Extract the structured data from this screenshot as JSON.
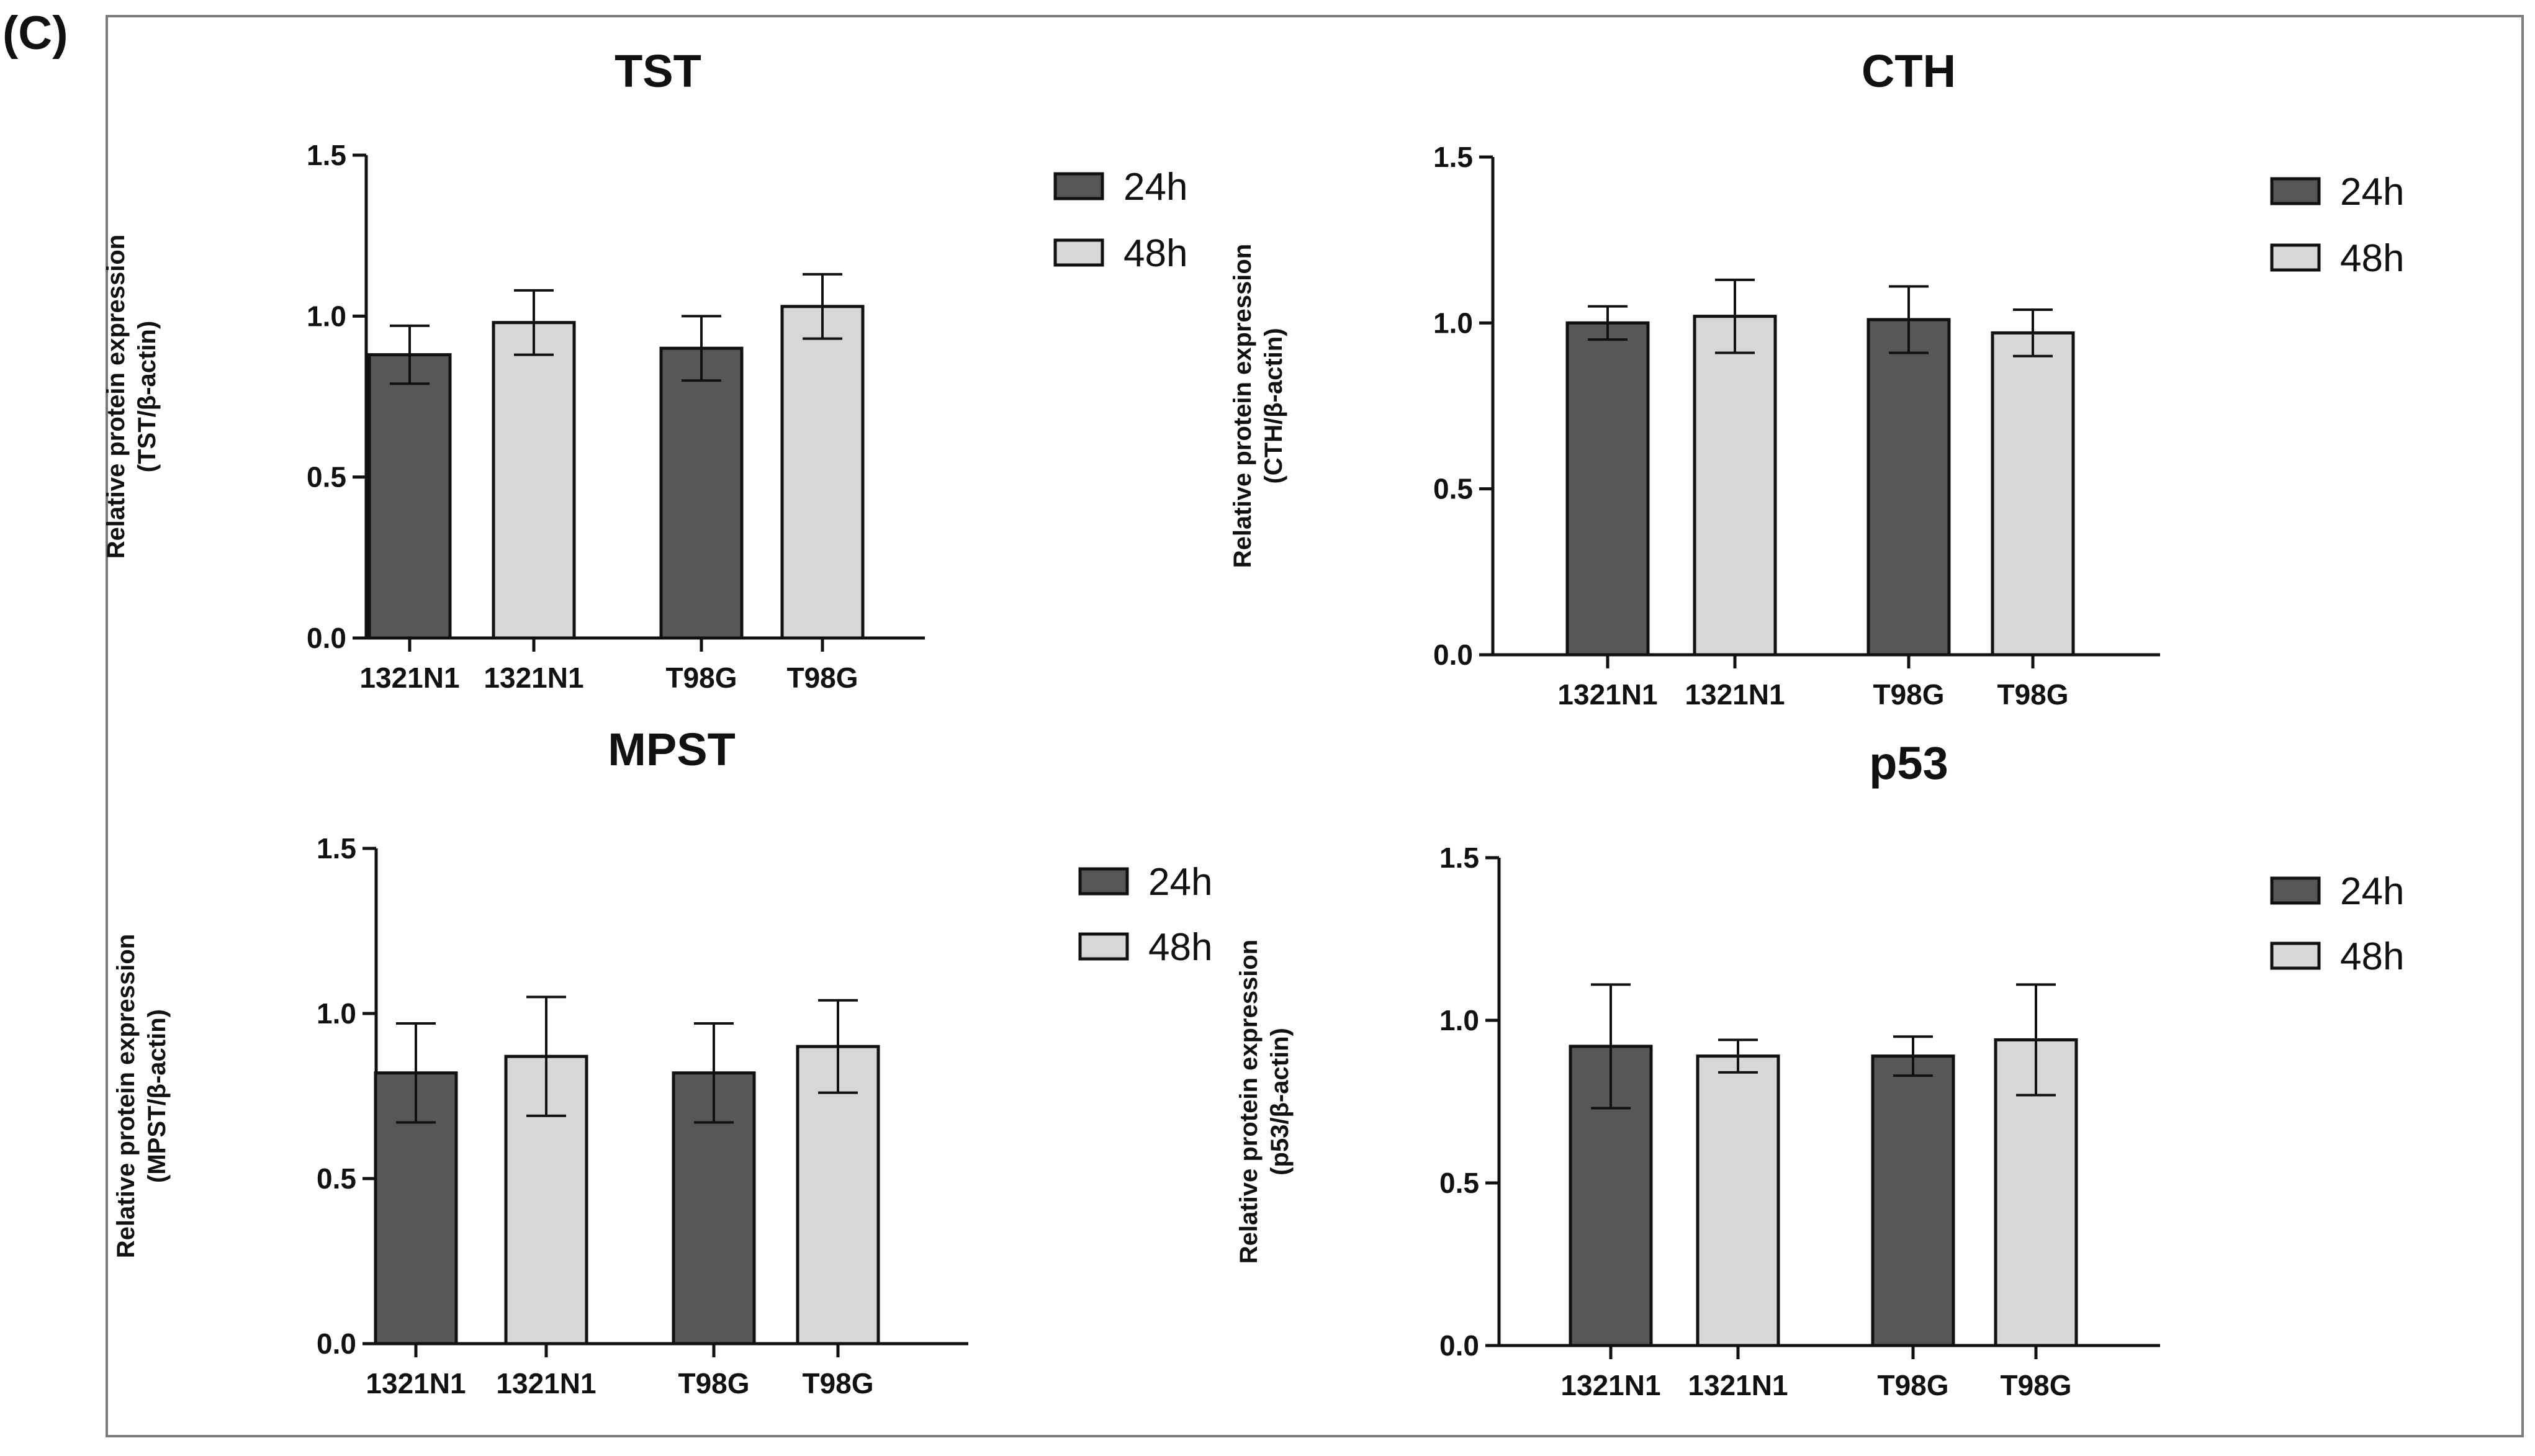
{
  "panel_label": "(C)",
  "legend": [
    {
      "name": "24h",
      "color": "#575757"
    },
    {
      "name": "48h",
      "color": "#d7d7d7"
    }
  ],
  "chart_data": [
    {
      "type": "bar",
      "title": "TST",
      "ylabel_line1": "Relative protein expression",
      "ylabel_line2": "(TST/β-actin)",
      "xlabel": "",
      "ylim": [
        0,
        1.5
      ],
      "yticks": [
        "0.0",
        "0.5",
        "1.0",
        "1.5"
      ],
      "categories": [
        "1321N1",
        "1321N1",
        "T98G",
        "T98G"
      ],
      "series_of_bar": [
        "24h",
        "48h",
        "24h",
        "48h"
      ],
      "values": [
        0.88,
        0.98,
        0.9,
        1.03
      ],
      "errors": [
        0.09,
        0.1,
        0.1,
        0.1
      ]
    },
    {
      "type": "bar",
      "title": "CTH",
      "ylabel_line1": "Relative protein expression",
      "ylabel_line2": "(CTH/β-actin)",
      "xlabel": "",
      "ylim": [
        0,
        1.5
      ],
      "yticks": [
        "0.0",
        "0.5",
        "1.0",
        "1.5"
      ],
      "categories": [
        "1321N1",
        "1321N1",
        "T98G",
        "T98G"
      ],
      "series_of_bar": [
        "24h",
        "48h",
        "24h",
        "48h"
      ],
      "values": [
        1.0,
        1.02,
        1.01,
        0.97
      ],
      "errors": [
        0.05,
        0.11,
        0.1,
        0.07
      ]
    },
    {
      "type": "bar",
      "title": "MPST",
      "ylabel_line1": "Relative protein expression",
      "ylabel_line2": "(MPST/β-actin)",
      "xlabel": "",
      "ylim": [
        0,
        1.5
      ],
      "yticks": [
        "0.0",
        "0.5",
        "1.0",
        "1.5"
      ],
      "categories": [
        "1321N1",
        "1321N1",
        "T98G",
        "T98G"
      ],
      "series_of_bar": [
        "24h",
        "48h",
        "24h",
        "48h"
      ],
      "values": [
        0.82,
        0.87,
        0.82,
        0.9
      ],
      "errors": [
        0.15,
        0.18,
        0.15,
        0.14
      ]
    },
    {
      "type": "bar",
      "title": "p53",
      "ylabel_line1": "Relative protein expression",
      "ylabel_line2": "(p53/β-actin)",
      "xlabel": "",
      "ylim": [
        0,
        1.5
      ],
      "yticks": [
        "0.0",
        "0.5",
        "1.0",
        "1.5"
      ],
      "categories": [
        "1321N1",
        "1321N1",
        "T98G",
        "T98G"
      ],
      "series_of_bar": [
        "24h",
        "48h",
        "24h",
        "48h"
      ],
      "values": [
        0.92,
        0.89,
        0.89,
        0.94
      ],
      "errors": [
        0.19,
        0.05,
        0.06,
        0.17
      ]
    }
  ]
}
